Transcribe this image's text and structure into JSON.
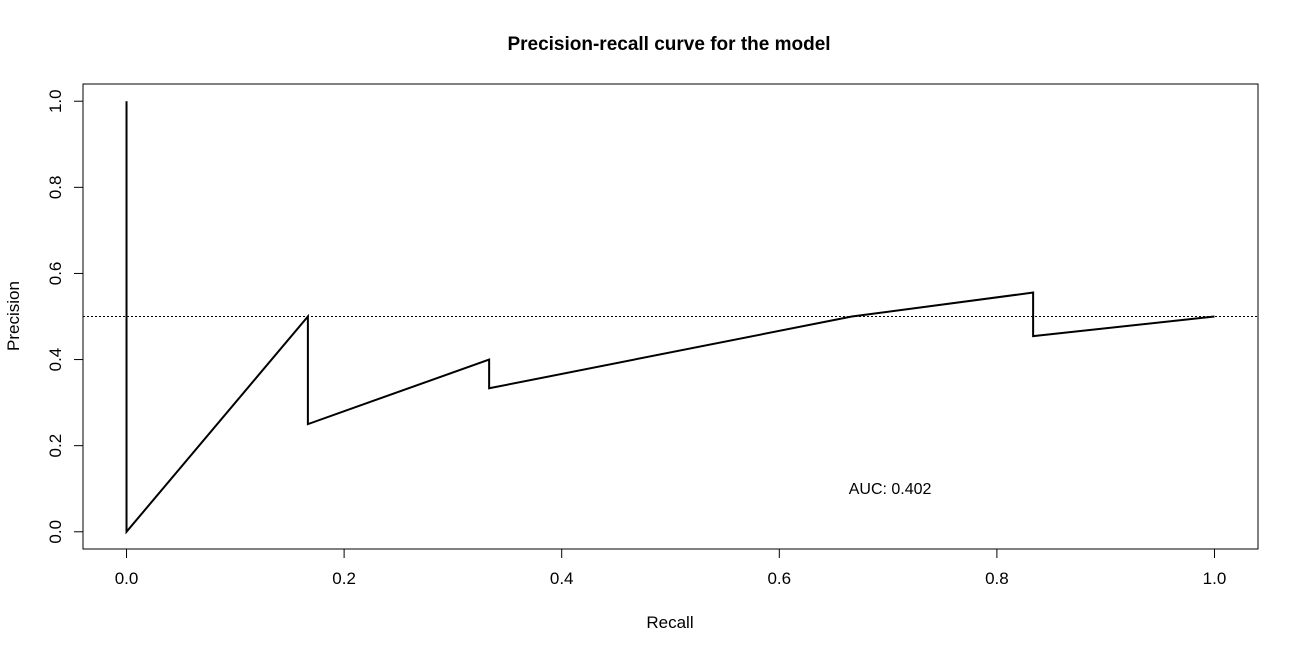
{
  "chart_data": {
    "type": "line",
    "title": "Precision-recall curve for the model",
    "xlabel": "Recall",
    "ylabel": "Precision",
    "xlim": [
      -0.04,
      1.04
    ],
    "ylim": [
      -0.04,
      1.04
    ],
    "x_ticks": [
      "0.0",
      "0.2",
      "0.4",
      "0.6",
      "0.8",
      "1.0"
    ],
    "y_ticks": [
      "0.0",
      "0.2",
      "0.4",
      "0.6",
      "0.8",
      "1.0"
    ],
    "grid": false,
    "series": [
      {
        "x": [
          0.0,
          0.0,
          0.1667,
          0.1667,
          0.3333,
          0.3333,
          0.6667,
          0.8333,
          0.8333,
          1.0
        ],
        "y": [
          1.0,
          0.0,
          0.5,
          0.25,
          0.4,
          0.3333,
          0.5,
          0.5556,
          0.4545,
          0.5
        ]
      }
    ],
    "reference_line": {
      "orientation": "horizontal",
      "y": 0.5,
      "style": "dotted"
    },
    "annotation": {
      "text": "AUC: 0.402",
      "x": 0.7,
      "y": 0.095
    }
  }
}
